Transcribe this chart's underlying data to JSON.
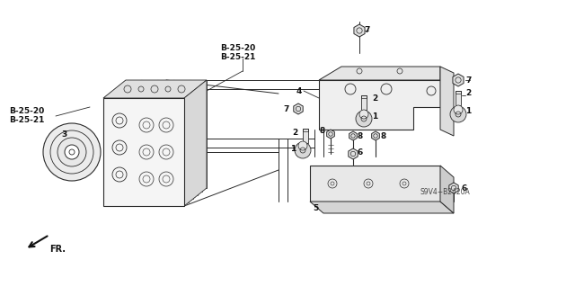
{
  "bg_color": "#ffffff",
  "line_color": "#2a2a2a",
  "text_color": "#111111",
  "diagram_code": "S9V4−B2420A",
  "labels": {
    "top_ref1": "B-25-20",
    "top_ref2": "B-25-21",
    "left_ref1": "B-25-20",
    "left_ref2": "B-25-21",
    "part3": "3",
    "part4": "4",
    "part7a": "7",
    "part7b": "7",
    "part7c": "7",
    "part2a": "2",
    "part2b": "2",
    "part2c": "2",
    "part1a": "1",
    "part1b": "1",
    "part1c": "1",
    "part8a": "8",
    "part8b": "8",
    "part8c": "8",
    "part5": "5",
    "part6a": "6",
    "part6b": "6",
    "fr_label": "FR."
  }
}
